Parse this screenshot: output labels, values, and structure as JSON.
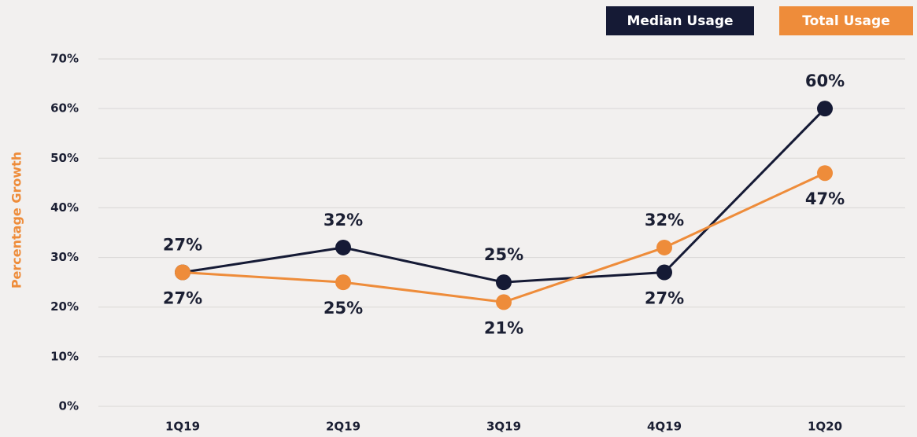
{
  "chart_data": {
    "type": "line",
    "ylabel": "Percentage Growth",
    "categories": [
      "1Q19",
      "2Q19",
      "3Q19",
      "4Q19",
      "1Q20"
    ],
    "series": [
      {
        "name": "Median Usage",
        "color": "#151a35",
        "values": [
          27,
          32,
          25,
          27,
          60
        ],
        "value_labels": [
          "27%",
          "32%",
          "25%",
          "27%",
          "60%"
        ]
      },
      {
        "name": "Total Usage",
        "color": "#ee8c3a",
        "values": [
          27,
          25,
          21,
          32,
          47
        ],
        "value_labels": [
          "27%",
          "25%",
          "21%",
          "32%",
          "47%"
        ]
      }
    ],
    "ylim": [
      0,
      70
    ],
    "yticks": [
      {
        "value": 0,
        "label": "0%"
      },
      {
        "value": 10,
        "label": "10%"
      },
      {
        "value": 20,
        "label": "20%"
      },
      {
        "value": 30,
        "label": "30%"
      },
      {
        "value": 40,
        "label": "40%"
      },
      {
        "value": 50,
        "label": "50%"
      },
      {
        "value": 60,
        "label": "60%"
      },
      {
        "value": 70,
        "label": "70%"
      }
    ],
    "grid": true,
    "legend": "top-right"
  }
}
